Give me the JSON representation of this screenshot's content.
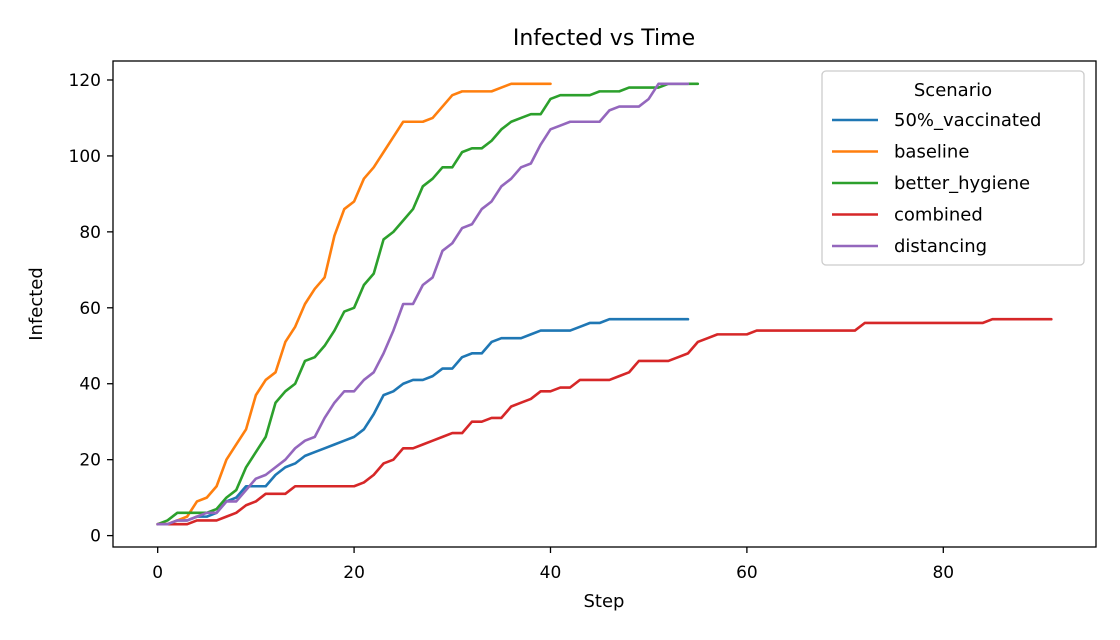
{
  "chart_data": {
    "type": "line",
    "title": "Infected vs Time",
    "xlabel": "Step",
    "ylabel": "Infected",
    "xlim": [
      -4.55,
      95.55
    ],
    "ylim": [
      -3,
      125
    ],
    "xticks": [
      0,
      20,
      40,
      60,
      80
    ],
    "yticks": [
      0,
      20,
      40,
      60,
      80,
      100,
      120
    ],
    "grid": false,
    "legend": {
      "title": "Scenario",
      "placement": "top-right"
    },
    "series": [
      {
        "name": "50%_vaccinated",
        "color": "#1f77b4",
        "x": [
          0,
          1,
          2,
          3,
          4,
          5,
          6,
          7,
          8,
          9,
          10,
          11,
          12,
          13,
          14,
          15,
          16,
          17,
          18,
          19,
          20,
          21,
          22,
          23,
          24,
          25,
          26,
          27,
          28,
          29,
          30,
          31,
          32,
          33,
          34,
          35,
          36,
          37,
          38,
          39,
          40,
          41,
          42,
          43,
          44,
          45,
          46,
          47,
          48,
          49,
          50,
          51,
          52,
          53,
          54
        ],
        "y": [
          3,
          3,
          4,
          4,
          5,
          5,
          6,
          9,
          10,
          13,
          13,
          13,
          16,
          18,
          19,
          21,
          22,
          23,
          24,
          25,
          26,
          28,
          32,
          37,
          38,
          40,
          41,
          41,
          42,
          44,
          44,
          47,
          48,
          48,
          51,
          52,
          52,
          52,
          53,
          54,
          54,
          54,
          54,
          55,
          56,
          56,
          57,
          57,
          57,
          57,
          57,
          57,
          57,
          57,
          57
        ]
      },
      {
        "name": "baseline",
        "color": "#ff7f0e",
        "x": [
          0,
          1,
          2,
          3,
          4,
          5,
          6,
          7,
          8,
          9,
          10,
          11,
          12,
          13,
          14,
          15,
          16,
          17,
          18,
          19,
          20,
          21,
          22,
          23,
          24,
          25,
          26,
          27,
          28,
          29,
          30,
          31,
          32,
          33,
          34,
          35,
          36,
          37,
          38,
          39,
          40
        ],
        "y": [
          3,
          3,
          4,
          5,
          9,
          10,
          13,
          20,
          24,
          28,
          37,
          41,
          43,
          51,
          55,
          61,
          65,
          68,
          79,
          86,
          88,
          94,
          97,
          101,
          105,
          109,
          109,
          109,
          110,
          113,
          116,
          117,
          117,
          117,
          117,
          118,
          119,
          119,
          119,
          119,
          119
        ]
      },
      {
        "name": "better_hygiene",
        "color": "#2ca02c",
        "x": [
          0,
          1,
          2,
          3,
          4,
          5,
          6,
          7,
          8,
          9,
          10,
          11,
          12,
          13,
          14,
          15,
          16,
          17,
          18,
          19,
          20,
          21,
          22,
          23,
          24,
          25,
          26,
          27,
          28,
          29,
          30,
          31,
          32,
          33,
          34,
          35,
          36,
          37,
          38,
          39,
          40,
          41,
          42,
          43,
          44,
          45,
          46,
          47,
          48,
          49,
          50,
          51,
          52,
          53,
          54,
          55
        ],
        "y": [
          3,
          4,
          6,
          6,
          6,
          6,
          7,
          10,
          12,
          18,
          22,
          26,
          35,
          38,
          40,
          46,
          47,
          50,
          54,
          59,
          60,
          66,
          69,
          78,
          80,
          83,
          86,
          92,
          94,
          97,
          97,
          101,
          102,
          102,
          104,
          107,
          109,
          110,
          111,
          111,
          115,
          116,
          116,
          116,
          116,
          117,
          117,
          117,
          118,
          118,
          118,
          118,
          119,
          119,
          119,
          119
        ]
      },
      {
        "name": "combined",
        "color": "#d62728",
        "x": [
          0,
          1,
          2,
          3,
          4,
          5,
          6,
          7,
          8,
          9,
          10,
          11,
          12,
          13,
          14,
          15,
          16,
          17,
          18,
          19,
          20,
          21,
          22,
          23,
          24,
          25,
          26,
          27,
          28,
          29,
          30,
          31,
          32,
          33,
          34,
          35,
          36,
          37,
          38,
          39,
          40,
          41,
          42,
          43,
          44,
          45,
          46,
          47,
          48,
          49,
          50,
          51,
          52,
          53,
          54,
          55,
          56,
          57,
          58,
          59,
          60,
          61,
          62,
          63,
          64,
          65,
          66,
          67,
          68,
          69,
          70,
          71,
          72,
          73,
          74,
          75,
          76,
          77,
          78,
          79,
          80,
          81,
          82,
          83,
          84,
          85,
          86,
          87,
          88,
          89,
          90,
          91
        ],
        "y": [
          3,
          3,
          3,
          3,
          4,
          4,
          4,
          5,
          6,
          8,
          9,
          11,
          11,
          11,
          13,
          13,
          13,
          13,
          13,
          13,
          13,
          14,
          16,
          19,
          20,
          23,
          23,
          24,
          25,
          26,
          27,
          27,
          30,
          30,
          31,
          31,
          34,
          35,
          36,
          38,
          38,
          39,
          39,
          41,
          41,
          41,
          41,
          42,
          43,
          46,
          46,
          46,
          46,
          47,
          48,
          51,
          52,
          53,
          53,
          53,
          53,
          54,
          54,
          54,
          54,
          54,
          54,
          54,
          54,
          54,
          54,
          54,
          56,
          56,
          56,
          56,
          56,
          56,
          56,
          56,
          56,
          56,
          56,
          56,
          56,
          57,
          57,
          57,
          57,
          57,
          57,
          57
        ]
      },
      {
        "name": "distancing",
        "color": "#9467bd",
        "x": [
          0,
          1,
          2,
          3,
          4,
          5,
          6,
          7,
          8,
          9,
          10,
          11,
          12,
          13,
          14,
          15,
          16,
          17,
          18,
          19,
          20,
          21,
          22,
          23,
          24,
          25,
          26,
          27,
          28,
          29,
          30,
          31,
          32,
          33,
          34,
          35,
          36,
          37,
          38,
          39,
          40,
          41,
          42,
          43,
          44,
          45,
          46,
          47,
          48,
          49,
          50,
          51,
          52,
          53,
          54
        ],
        "y": [
          3,
          3,
          4,
          4,
          5,
          6,
          6,
          9,
          9,
          12,
          15,
          16,
          18,
          20,
          23,
          25,
          26,
          31,
          35,
          38,
          38,
          41,
          43,
          48,
          54,
          61,
          61,
          66,
          68,
          75,
          77,
          81,
          82,
          86,
          88,
          92,
          94,
          97,
          98,
          103,
          107,
          108,
          109,
          109,
          109,
          109,
          112,
          113,
          113,
          113,
          115,
          119,
          119,
          119,
          119
        ]
      }
    ]
  }
}
